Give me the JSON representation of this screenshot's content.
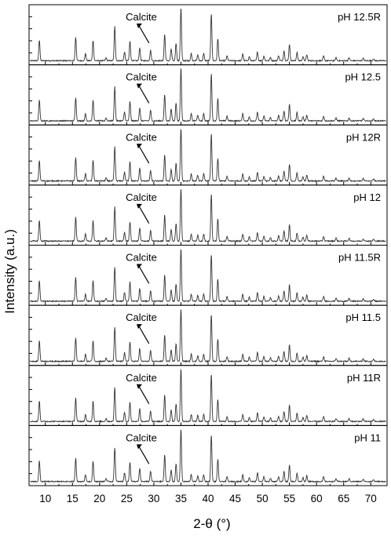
{
  "chart_data": {
    "type": "line",
    "xlabel": "2-θ (°)",
    "ylabel": "Intensity (a.u.)",
    "xlim": [
      7,
      73
    ],
    "xticks": [
      10,
      15,
      20,
      25,
      30,
      35,
      40,
      45,
      50,
      55,
      60,
      65,
      70
    ],
    "annotation": "Calcite",
    "annotation_x": 29.4,
    "grid": false,
    "legend": "none",
    "line_color": "#333333",
    "baseline": 0.07,
    "peaks": [
      {
        "x": 8.9,
        "h": 0.35
      },
      {
        "x": 15.6,
        "h": 0.4
      },
      {
        "x": 17.4,
        "h": 0.12
      },
      {
        "x": 18.8,
        "h": 0.35
      },
      {
        "x": 21.2,
        "h": 0.05
      },
      {
        "x": 22.8,
        "h": 0.58
      },
      {
        "x": 24.6,
        "h": 0.15
      },
      {
        "x": 25.6,
        "h": 0.33
      },
      {
        "x": 27.4,
        "h": 0.22
      },
      {
        "x": 29.4,
        "h": 0.18
      },
      {
        "x": 32.0,
        "h": 0.45
      },
      {
        "x": 33.2,
        "h": 0.2
      },
      {
        "x": 34.1,
        "h": 0.3
      },
      {
        "x": 35.0,
        "h": 0.9
      },
      {
        "x": 36.9,
        "h": 0.12
      },
      {
        "x": 38.1,
        "h": 0.1
      },
      {
        "x": 39.2,
        "h": 0.12
      },
      {
        "x": 40.6,
        "h": 0.8
      },
      {
        "x": 41.8,
        "h": 0.38
      },
      {
        "x": 43.5,
        "h": 0.08
      },
      {
        "x": 46.4,
        "h": 0.12
      },
      {
        "x": 47.6,
        "h": 0.07
      },
      {
        "x": 49.1,
        "h": 0.15
      },
      {
        "x": 50.3,
        "h": 0.08
      },
      {
        "x": 51.5,
        "h": 0.06
      },
      {
        "x": 53.0,
        "h": 0.09
      },
      {
        "x": 54.0,
        "h": 0.17
      },
      {
        "x": 55.0,
        "h": 0.28
      },
      {
        "x": 56.4,
        "h": 0.14
      },
      {
        "x": 57.5,
        "h": 0.07
      },
      {
        "x": 58.2,
        "h": 0.1
      },
      {
        "x": 61.3,
        "h": 0.08
      },
      {
        "x": 63.6,
        "h": 0.05
      },
      {
        "x": 66.0,
        "h": 0.05
      },
      {
        "x": 68.6,
        "h": 0.04
      },
      {
        "x": 70.5,
        "h": 0.03
      }
    ],
    "panels": [
      {
        "label": "pH 12.5R"
      },
      {
        "label": "pH 12.5"
      },
      {
        "label": "pH 12R"
      },
      {
        "label": "pH 12"
      },
      {
        "label": "pH 11.5R"
      },
      {
        "label": "pH 11.5"
      },
      {
        "label": "pH 11R"
      },
      {
        "label": "pH 11"
      }
    ]
  }
}
